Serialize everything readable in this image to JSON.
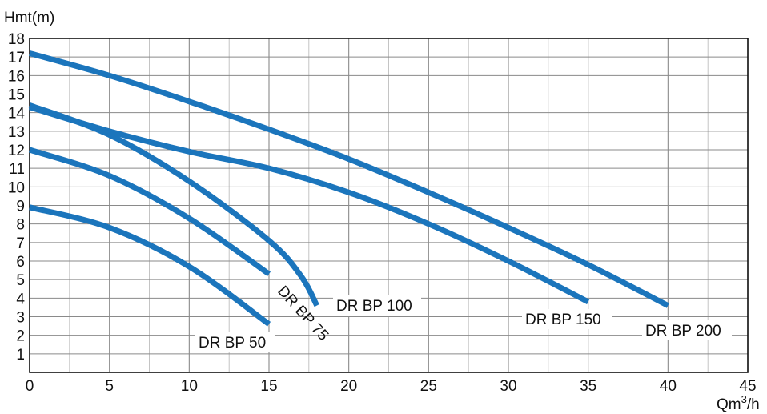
{
  "chart_data": {
    "type": "line",
    "ylabel": "Hmt(m)",
    "xlabel_main": "Qm",
    "xlabel_sup": "3",
    "xlabel_tail": "/h",
    "xlim": [
      0,
      45
    ],
    "ylim": [
      0,
      18
    ],
    "x_ticks": [
      0,
      5,
      10,
      15,
      20,
      25,
      30,
      35,
      40,
      45
    ],
    "y_ticks": [
      1,
      2,
      3,
      4,
      5,
      6,
      7,
      8,
      9,
      10,
      11,
      12,
      13,
      14,
      15,
      16,
      17,
      18
    ],
    "grid": true,
    "line_color": "#1b75bc",
    "series": [
      {
        "name": "DR BP 50",
        "x": [
          0,
          5,
          10,
          15
        ],
        "y": [
          8.9,
          7.8,
          5.7,
          2.6
        ]
      },
      {
        "name": "DR BP 75",
        "x": [
          0,
          5,
          10,
          15
        ],
        "y": [
          12.0,
          10.6,
          8.3,
          5.3
        ]
      },
      {
        "name": "DR BP 100",
        "x": [
          0,
          5,
          10,
          15,
          17,
          18
        ],
        "y": [
          14.4,
          12.8,
          10.3,
          7.1,
          5.2,
          3.6
        ]
      },
      {
        "name": "DR BP 150",
        "x": [
          0,
          5,
          10,
          15,
          20,
          25,
          30,
          35
        ],
        "y": [
          14.3,
          13.0,
          11.9,
          11.0,
          9.7,
          8.0,
          6.0,
          3.8
        ]
      },
      {
        "name": "DR BP 200",
        "x": [
          0,
          5,
          10,
          15,
          20,
          25,
          30,
          35,
          40
        ],
        "y": [
          17.2,
          16.0,
          14.6,
          13.1,
          11.5,
          9.7,
          7.8,
          5.8,
          3.6
        ]
      }
    ]
  }
}
